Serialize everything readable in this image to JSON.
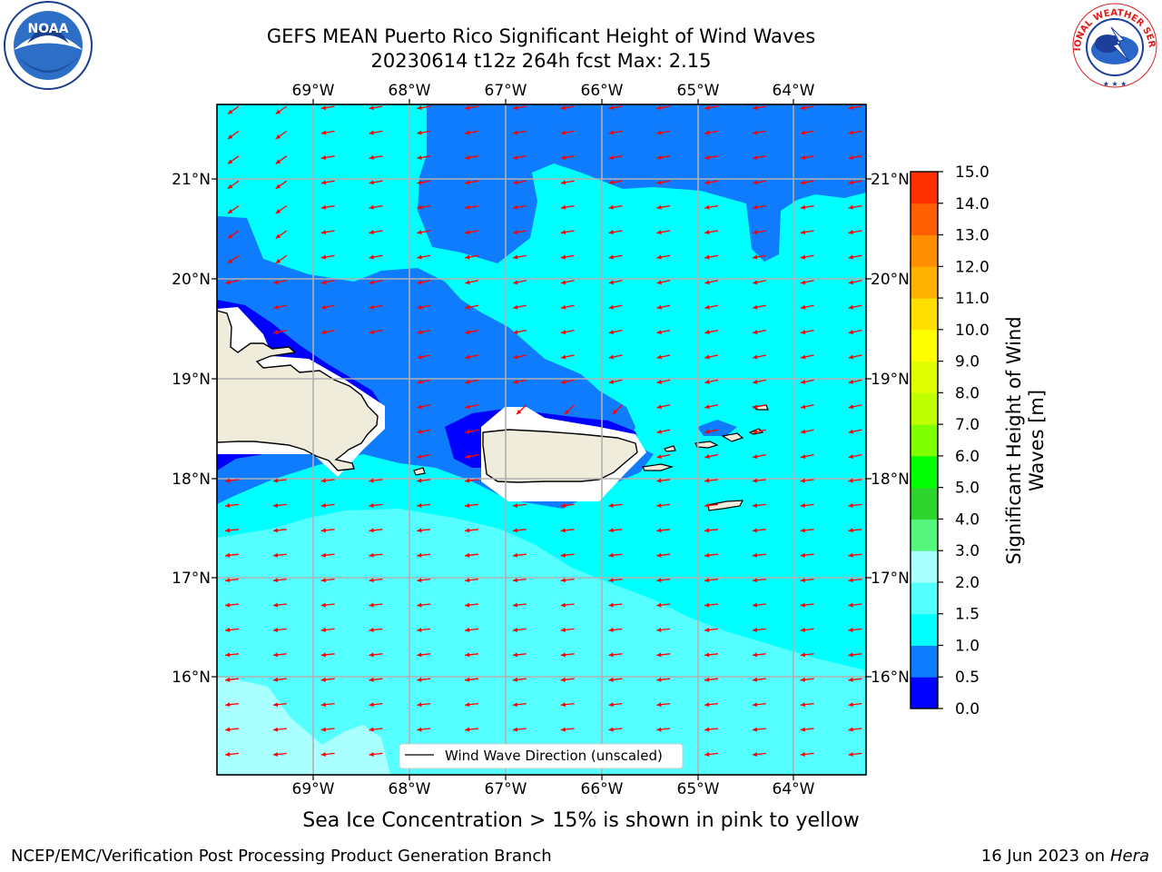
{
  "title_line1": "GEFS MEAN Puerto Rico Significant Height of Wind Waves",
  "title_line2": "20230614 t12z 264h fcst   Max: 2.15",
  "lon_labels": [
    "69°W",
    "68°W",
    "67°W",
    "66°W",
    "65°W",
    "64°W"
  ],
  "lat_labels": [
    "21°N",
    "20°N",
    "19°N",
    "18°N",
    "17°N",
    "16°N"
  ],
  "legend_label": "Wind Wave Direction (unscaled)",
  "colorbar": {
    "label_line1": "Significant Height of Wind",
    "label_line2": "Waves [m]",
    "ticks": [
      "0.0",
      "0.5",
      "1.0",
      "1.5",
      "2.0",
      "3.0",
      "4.0",
      "5.0",
      "6.0",
      "7.0",
      "8.0",
      "9.0",
      "10.0",
      "11.0",
      "12.0",
      "13.0",
      "14.0",
      "15.0"
    ],
    "colors": [
      "#0000ff",
      "#0f7cfd",
      "#00ffff",
      "#55ffff",
      "#aaffff",
      "#55f57e",
      "#2cd42c",
      "#00ff00",
      "#7fff00",
      "#bfff00",
      "#dfff00",
      "#ffff00",
      "#ffdf00",
      "#ffb000",
      "#ff8f00",
      "#ff5f00",
      "#ff2f00",
      "#ff0000"
    ]
  },
  "colors": {
    "land": "#efecdc",
    "arrow": "#ff0000",
    "grid": "#b0b0b0"
  },
  "subtitle": "Sea Ice Concentration > 15% is shown in pink to yellow",
  "footer_left": "NCEP/EMC/Verification Post Processing Product Generation Branch",
  "footer_date": "16 Jun 2023 on",
  "footer_system": "Hera",
  "logos": {
    "left_name": "NOAA",
    "right_name": "NATIONAL WEATHER SERVICE"
  }
}
